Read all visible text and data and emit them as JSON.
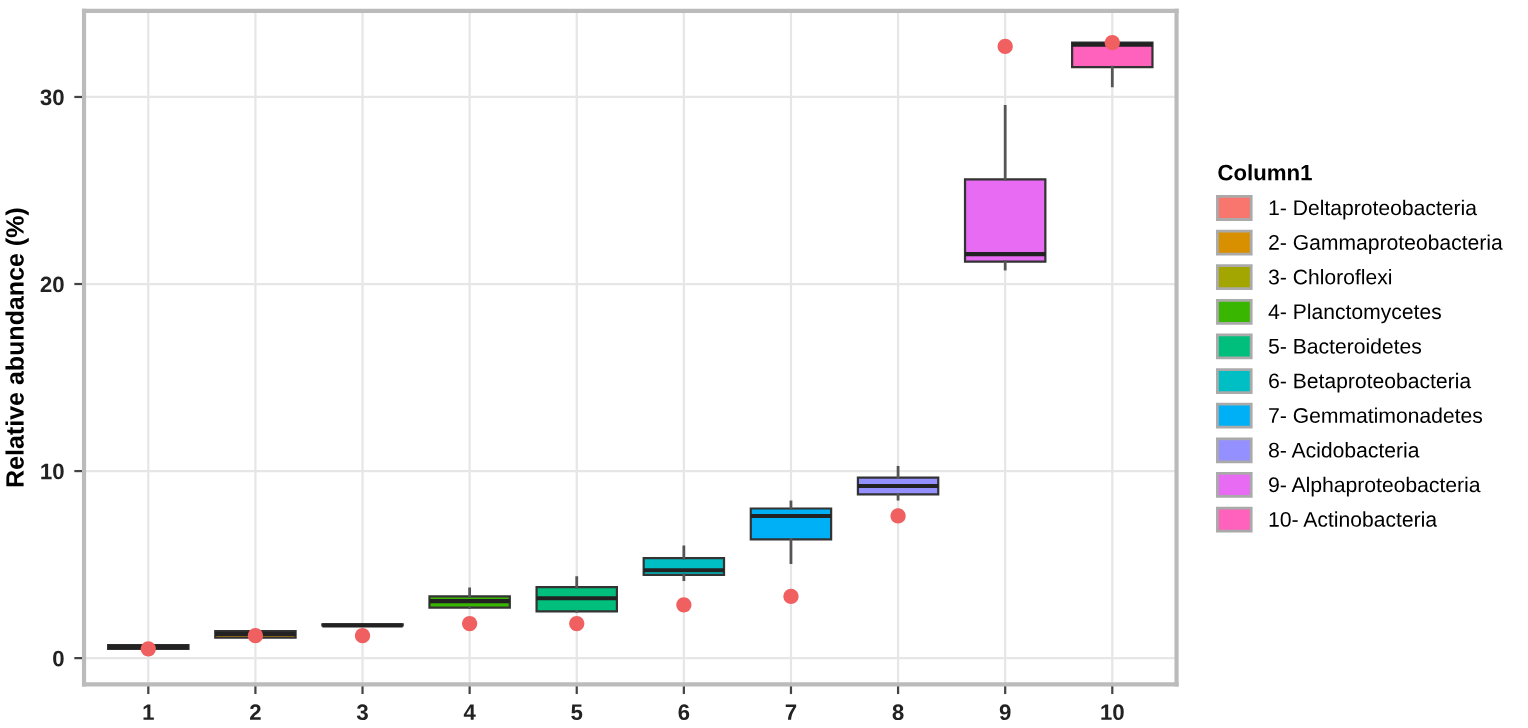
{
  "chart_data": {
    "type": "box",
    "ylabel": "Relative abundance (%)",
    "legend_title": "Column1",
    "legend": "right",
    "grid": true,
    "categories": [
      "1",
      "2",
      "3",
      "4",
      "5",
      "6",
      "7",
      "8",
      "9",
      "10"
    ],
    "ylim": [
      -1.4,
      34.6
    ],
    "yticks": [
      0,
      10,
      20,
      30
    ],
    "series": [
      {
        "name": "1- Deltaproteobacteria",
        "color": "#f8766d",
        "boxes": [
          {
            "low": 0.5,
            "q1": 0.5,
            "median": 0.6,
            "q3": 0.7,
            "high": 0.7
          },
          null,
          null,
          null,
          null,
          null,
          null,
          null,
          null,
          null
        ]
      },
      {
        "name": "2- Gammaproteobacteria",
        "color": "#d89000",
        "boxes": [
          null,
          {
            "low": 1.1,
            "q1": 1.1,
            "median": 1.3,
            "q3": 1.45,
            "high": 1.45
          },
          null,
          null,
          null,
          null,
          null,
          null,
          null,
          null
        ]
      },
      {
        "name": "3- Chloroflexi",
        "color": "#a3a500",
        "boxes": [
          null,
          null,
          {
            "low": 1.75,
            "q1": 1.75,
            "median": 1.75,
            "q3": 1.8,
            "high": 1.8
          },
          null,
          null,
          null,
          null,
          null,
          null,
          null
        ]
      },
      {
        "name": "4- Planctomycetes",
        "color": "#39b600",
        "boxes": [
          null,
          null,
          null,
          {
            "low": 2.7,
            "q1": 2.7,
            "median": 3.05,
            "q3": 3.3,
            "high": 3.7
          },
          null,
          null,
          null,
          null,
          null,
          null
        ]
      },
      {
        "name": "5- Bacteroidetes",
        "color": "#00bf7d",
        "boxes": [
          null,
          null,
          null,
          null,
          {
            "low": 2.5,
            "q1": 2.5,
            "median": 3.2,
            "q3": 3.8,
            "high": 4.3
          },
          null,
          null,
          null,
          null,
          null
        ]
      },
      {
        "name": "6- Betaproteobacteria",
        "color": "#00bfc4",
        "boxes": [
          null,
          null,
          null,
          null,
          null,
          {
            "low": 4.2,
            "q1": 4.45,
            "median": 4.7,
            "q3": 5.35,
            "high": 5.95
          },
          null,
          null,
          null,
          null
        ]
      },
      {
        "name": "7- Gemmatimonadetes",
        "color": "#00b0f6",
        "boxes": [
          null,
          null,
          null,
          null,
          null,
          null,
          {
            "low": 5.1,
            "q1": 6.35,
            "median": 7.6,
            "q3": 8.0,
            "high": 8.35
          },
          null,
          null,
          null
        ]
      },
      {
        "name": "8- Acidobacteria",
        "color": "#9590ff",
        "boxes": [
          null,
          null,
          null,
          null,
          null,
          null,
          null,
          {
            "low": 8.5,
            "q1": 8.75,
            "median": 9.2,
            "q3": 9.65,
            "high": 10.2
          },
          null,
          null
        ]
      },
      {
        "name": "9- Alphaproteobacteria",
        "color": "#e76bf3",
        "boxes": [
          null,
          null,
          null,
          null,
          null,
          null,
          null,
          null,
          {
            "low": 20.8,
            "q1": 21.2,
            "median": 21.6,
            "q3": 25.6,
            "high": 29.5
          },
          null
        ]
      },
      {
        "name": "10- Actinobacteria",
        "color": "#ff62bc",
        "boxes": [
          null,
          null,
          null,
          null,
          null,
          null,
          null,
          null,
          null,
          {
            "low": 30.6,
            "q1": 31.6,
            "median": 32.8,
            "q3": 32.9,
            "high": 32.9
          }
        ]
      },
      {
        "type": "scatter",
        "color": "#f06060",
        "x": [
          "1",
          "2",
          "3",
          "4",
          "5",
          "6",
          "7",
          "8",
          "9",
          "10"
        ],
        "values": [
          0.5,
          1.2,
          1.2,
          1.85,
          1.85,
          2.85,
          3.3,
          7.6,
          32.7,
          32.9
        ]
      }
    ]
  }
}
